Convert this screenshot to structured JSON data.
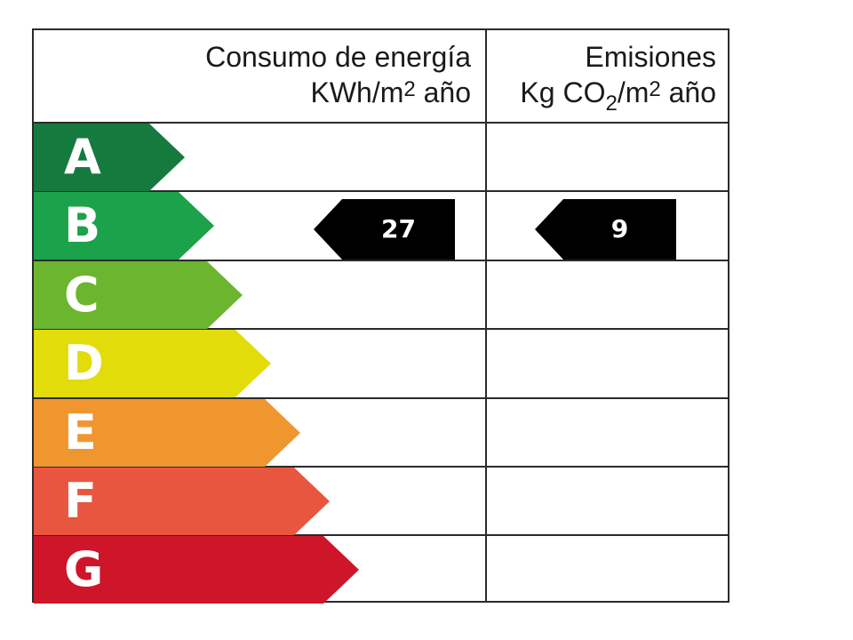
{
  "header": {
    "energy_line1": "Consumo de energía",
    "energy_unit_a": "KWh/m",
    "energy_unit_exp": "2",
    "energy_unit_b": " año",
    "emissions_line1": "Emisiones",
    "emissions_unit_a": "Kg CO",
    "emissions_unit_sub": "2",
    "emissions_unit_b": "/m",
    "emissions_unit_exp": "2",
    "emissions_unit_c": " año"
  },
  "bands": [
    {
      "letter": "A",
      "color": "#157a3d"
    },
    {
      "letter": "B",
      "color": "#1ba24a"
    },
    {
      "letter": "C",
      "color": "#6bb52f"
    },
    {
      "letter": "D",
      "color": "#e3dc0b"
    },
    {
      "letter": "E",
      "color": "#f0962f"
    },
    {
      "letter": "F",
      "color": "#e9563f"
    },
    {
      "letter": "G",
      "color": "#cf1529"
    }
  ],
  "rating": {
    "energy_class": "B",
    "energy_value": "27",
    "emissions_class": "B",
    "emissions_value": "9",
    "marker_color": "#000000"
  }
}
